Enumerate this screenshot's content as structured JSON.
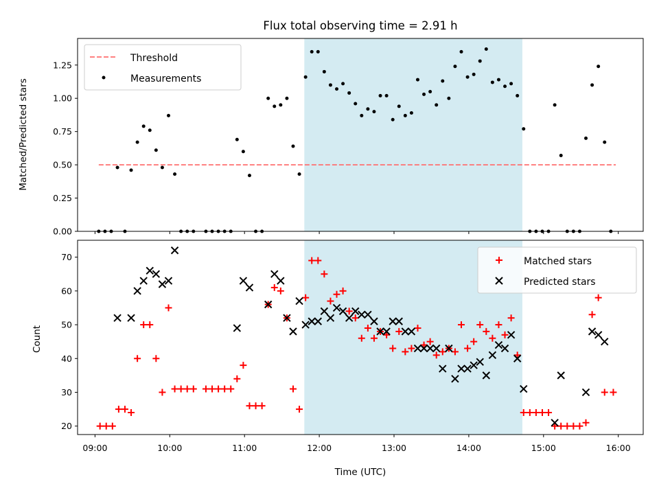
{
  "chart_data": [
    {
      "type": "scatter",
      "title": "Flux total observing time = 2.91 h",
      "ylabel": "Matched/Predicted stars",
      "xlim": [
        "08:46",
        "16:20"
      ],
      "ylim": [
        0,
        1.45
      ],
      "yticks": [
        "0.00",
        "0.25",
        "0.50",
        "0.75",
        "1.00",
        "1.25"
      ],
      "shaded_region": {
        "start": "11:48",
        "end": "14:43",
        "color": "#add8e6"
      },
      "legend": {
        "placement": "top-left",
        "entries": [
          "Threshold",
          "Measurements"
        ]
      },
      "series": [
        {
          "name": "Threshold",
          "style": "dashed-line",
          "color": "#ff6f6f",
          "x": [
            "09:03",
            "15:58"
          ],
          "y": [
            0.5,
            0.5
          ]
        },
        {
          "name": "Measurements",
          "style": "dot",
          "color": "#000000",
          "points": [
            [
              "09:03",
              0
            ],
            [
              "09:08",
              0
            ],
            [
              "09:13",
              0
            ],
            [
              "09:18",
              0.48
            ],
            [
              "09:24",
              0
            ],
            [
              "09:29",
              0.46
            ],
            [
              "09:34",
              0.67
            ],
            [
              "09:39",
              0.79
            ],
            [
              "09:44",
              0.76
            ],
            [
              "09:49",
              0.61
            ],
            [
              "09:54",
              0.48
            ],
            [
              "09:59",
              0.87
            ],
            [
              "10:04",
              0.43
            ],
            [
              "10:09",
              0
            ],
            [
              "10:14",
              0
            ],
            [
              "10:19",
              0
            ],
            [
              "10:29",
              0
            ],
            [
              "10:34",
              0
            ],
            [
              "10:39",
              0
            ],
            [
              "10:44",
              0
            ],
            [
              "10:49",
              0
            ],
            [
              "10:54",
              0.69
            ],
            [
              "10:59",
              0.6
            ],
            [
              "11:04",
              0.42
            ],
            [
              "11:09",
              0
            ],
            [
              "11:14",
              0
            ],
            [
              "11:19",
              1.0
            ],
            [
              "11:24",
              0.94
            ],
            [
              "11:29",
              0.95
            ],
            [
              "11:34",
              1.0
            ],
            [
              "11:39",
              0.64
            ],
            [
              "11:44",
              0.43
            ],
            [
              "11:49",
              1.16
            ],
            [
              "11:54",
              1.35
            ],
            [
              "11:59",
              1.35
            ],
            [
              "12:04",
              1.2
            ],
            [
              "12:09",
              1.1
            ],
            [
              "12:14",
              1.07
            ],
            [
              "12:19",
              1.11
            ],
            [
              "12:24",
              1.04
            ],
            [
              "12:29",
              0.96
            ],
            [
              "12:34",
              0.87
            ],
            [
              "12:39",
              0.92
            ],
            [
              "12:44",
              0.9
            ],
            [
              "12:49",
              1.02
            ],
            [
              "12:54",
              1.02
            ],
            [
              "12:59",
              0.84
            ],
            [
              "13:04",
              0.94
            ],
            [
              "13:09",
              0.87
            ],
            [
              "13:14",
              0.89
            ],
            [
              "13:19",
              1.14
            ],
            [
              "13:24",
              1.03
            ],
            [
              "13:29",
              1.05
            ],
            [
              "13:34",
              0.95
            ],
            [
              "13:39",
              1.13
            ],
            [
              "13:44",
              1.0
            ],
            [
              "13:49",
              1.24
            ],
            [
              "13:54",
              1.35
            ],
            [
              "13:59",
              1.16
            ],
            [
              "14:04",
              1.18
            ],
            [
              "14:09",
              1.28
            ],
            [
              "14:14",
              1.37
            ],
            [
              "14:19",
              1.12
            ],
            [
              "14:24",
              1.14
            ],
            [
              "14:29",
              1.09
            ],
            [
              "14:34",
              1.11
            ],
            [
              "14:39",
              1.02
            ],
            [
              "14:44",
              0.77
            ],
            [
              "14:49",
              0
            ],
            [
              "14:54",
              0
            ],
            [
              "14:59",
              0
            ],
            [
              "15:04",
              0
            ],
            [
              "15:09",
              0.95
            ],
            [
              "15:14",
              0.57
            ],
            [
              "15:19",
              0
            ],
            [
              "15:24",
              0
            ],
            [
              "15:29",
              0
            ],
            [
              "15:34",
              0.7
            ],
            [
              "15:39",
              1.1
            ],
            [
              "15:44",
              1.24
            ],
            [
              "15:49",
              0.67
            ],
            [
              "15:54",
              0
            ]
          ]
        }
      ]
    },
    {
      "type": "scatter",
      "xlabel": "Time (UTC)",
      "ylabel": "Count",
      "xlim": [
        "08:46",
        "16:20"
      ],
      "ylim": [
        17.5,
        75
      ],
      "xticks": [
        "09:00",
        "10:00",
        "11:00",
        "12:00",
        "13:00",
        "14:00",
        "15:00",
        "16:00"
      ],
      "yticks": [
        "20",
        "30",
        "40",
        "50",
        "60",
        "70"
      ],
      "shaded_region": {
        "start": "11:48",
        "end": "14:43",
        "color": "#add8e6"
      },
      "legend": {
        "placement": "top-right",
        "entries": [
          "Matched stars",
          "Predicted stars"
        ]
      },
      "series": [
        {
          "name": "Matched stars",
          "style": "plus",
          "color": "#ff0000",
          "points": [
            [
              "09:04",
              20
            ],
            [
              "09:09",
              20
            ],
            [
              "09:14",
              20
            ],
            [
              "09:19",
              25
            ],
            [
              "09:24",
              25
            ],
            [
              "09:29",
              24
            ],
            [
              "09:34",
              40
            ],
            [
              "09:39",
              50
            ],
            [
              "09:44",
              50
            ],
            [
              "09:49",
              40
            ],
            [
              "09:54",
              30
            ],
            [
              "09:59",
              55
            ],
            [
              "10:04",
              31
            ],
            [
              "10:09",
              31
            ],
            [
              "10:14",
              31
            ],
            [
              "10:19",
              31
            ],
            [
              "10:29",
              31
            ],
            [
              "10:34",
              31
            ],
            [
              "10:39",
              31
            ],
            [
              "10:44",
              31
            ],
            [
              "10:49",
              31
            ],
            [
              "10:54",
              34
            ],
            [
              "10:59",
              38
            ],
            [
              "11:04",
              26
            ],
            [
              "11:09",
              26
            ],
            [
              "11:14",
              26
            ],
            [
              "11:19",
              56
            ],
            [
              "11:24",
              61
            ],
            [
              "11:29",
              60
            ],
            [
              "11:34",
              52
            ],
            [
              "11:39",
              31
            ],
            [
              "11:44",
              25
            ],
            [
              "11:49",
              58
            ],
            [
              "11:54",
              69
            ],
            [
              "11:59",
              69
            ],
            [
              "12:04",
              65
            ],
            [
              "12:09",
              57
            ],
            [
              "12:14",
              59
            ],
            [
              "12:19",
              60
            ],
            [
              "12:24",
              54
            ],
            [
              "12:29",
              52
            ],
            [
              "12:34",
              46
            ],
            [
              "12:39",
              49
            ],
            [
              "12:44",
              46
            ],
            [
              "12:49",
              48
            ],
            [
              "12:54",
              47
            ],
            [
              "12:59",
              43
            ],
            [
              "13:04",
              48
            ],
            [
              "13:09",
              42
            ],
            [
              "13:14",
              43
            ],
            [
              "13:19",
              49
            ],
            [
              "13:24",
              44
            ],
            [
              "13:29",
              45
            ],
            [
              "13:34",
              41
            ],
            [
              "13:39",
              42
            ],
            [
              "13:44",
              43
            ],
            [
              "13:49",
              42
            ],
            [
              "13:54",
              50
            ],
            [
              "13:59",
              43
            ],
            [
              "14:04",
              45
            ],
            [
              "14:09",
              50
            ],
            [
              "14:14",
              48
            ],
            [
              "14:19",
              46
            ],
            [
              "14:24",
              50
            ],
            [
              "14:29",
              47
            ],
            [
              "14:34",
              52
            ],
            [
              "14:39",
              41
            ],
            [
              "14:44",
              24
            ],
            [
              "14:49",
              24
            ],
            [
              "14:54",
              24
            ],
            [
              "14:59",
              24
            ],
            [
              "15:04",
              24
            ],
            [
              "15:09",
              20
            ],
            [
              "15:14",
              20
            ],
            [
              "15:19",
              20
            ],
            [
              "15:24",
              20
            ],
            [
              "15:29",
              20
            ],
            [
              "15:34",
              21
            ],
            [
              "15:39",
              53
            ],
            [
              "15:44",
              58
            ],
            [
              "15:49",
              30
            ],
            [
              "15:56",
              30
            ]
          ]
        },
        {
          "name": "Predicted stars",
          "style": "x",
          "color": "#000000",
          "points": [
            [
              "09:18",
              52
            ],
            [
              "09:29",
              52
            ],
            [
              "09:34",
              60
            ],
            [
              "09:39",
              63
            ],
            [
              "09:44",
              66
            ],
            [
              "09:49",
              65
            ],
            [
              "09:54",
              62
            ],
            [
              "09:59",
              63
            ],
            [
              "10:04",
              72
            ],
            [
              "10:54",
              49
            ],
            [
              "10:59",
              63
            ],
            [
              "11:04",
              61
            ],
            [
              "11:19",
              56
            ],
            [
              "11:24",
              65
            ],
            [
              "11:29",
              63
            ],
            [
              "11:34",
              52
            ],
            [
              "11:39",
              48
            ],
            [
              "11:44",
              57
            ],
            [
              "11:49",
              50
            ],
            [
              "11:54",
              51
            ],
            [
              "11:59",
              51
            ],
            [
              "12:04",
              54
            ],
            [
              "12:09",
              52
            ],
            [
              "12:14",
              55
            ],
            [
              "12:19",
              54
            ],
            [
              "12:24",
              52
            ],
            [
              "12:29",
              54
            ],
            [
              "12:34",
              53
            ],
            [
              "12:39",
              53
            ],
            [
              "12:44",
              51
            ],
            [
              "12:49",
              48
            ],
            [
              "12:54",
              48
            ],
            [
              "12:59",
              51
            ],
            [
              "13:04",
              51
            ],
            [
              "13:09",
              48
            ],
            [
              "13:14",
              48
            ],
            [
              "13:19",
              43
            ],
            [
              "13:24",
              43
            ],
            [
              "13:29",
              43
            ],
            [
              "13:34",
              43
            ],
            [
              "13:39",
              37
            ],
            [
              "13:44",
              43
            ],
            [
              "13:49",
              34
            ],
            [
              "13:54",
              37
            ],
            [
              "13:59",
              37
            ],
            [
              "14:04",
              38
            ],
            [
              "14:09",
              39
            ],
            [
              "14:14",
              35
            ],
            [
              "14:19",
              41
            ],
            [
              "14:24",
              44
            ],
            [
              "14:29",
              43
            ],
            [
              "14:34",
              47
            ],
            [
              "14:39",
              40
            ],
            [
              "14:44",
              31
            ],
            [
              "15:09",
              21
            ],
            [
              "15:14",
              35
            ],
            [
              "15:34",
              30
            ],
            [
              "15:39",
              48
            ],
            [
              "15:44",
              47
            ],
            [
              "15:49",
              45
            ]
          ]
        }
      ]
    }
  ]
}
